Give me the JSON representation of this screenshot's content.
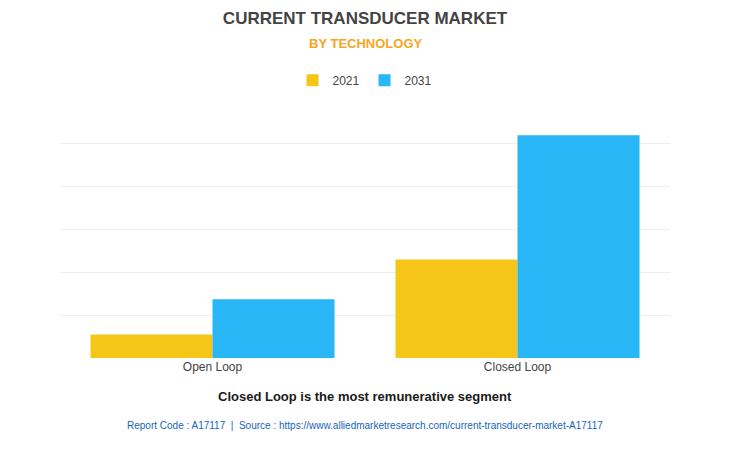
{
  "chart_data": {
    "type": "bar",
    "title": "CURRENT TRANSDUCER MARKET",
    "subtitle": "BY TECHNOLOGY",
    "categories": [
      "Open Loop",
      "Closed Loop"
    ],
    "series": [
      {
        "name": "2021",
        "color": "#F5C518",
        "values": [
          1.0,
          4.2
        ]
      },
      {
        "name": "2031",
        "color": "#29B6F6",
        "values": [
          2.5,
          9.5
        ]
      }
    ],
    "ylim": [
      0,
      11
    ],
    "yticks": [
      0,
      1.8333333333333333,
      3.6666666666666665,
      5.5,
      7.333333333333333,
      9.166666666666666,
      11
    ],
    "grid": true,
    "legend": "top",
    "tick_labels": "x",
    "annotations": [
      "Closed Loop is the most remunerative segment",
      "Report Code : A17117  |  Source : https://www.alliedmarketresearch.com/current-transducer-market-A17117"
    ]
  }
}
